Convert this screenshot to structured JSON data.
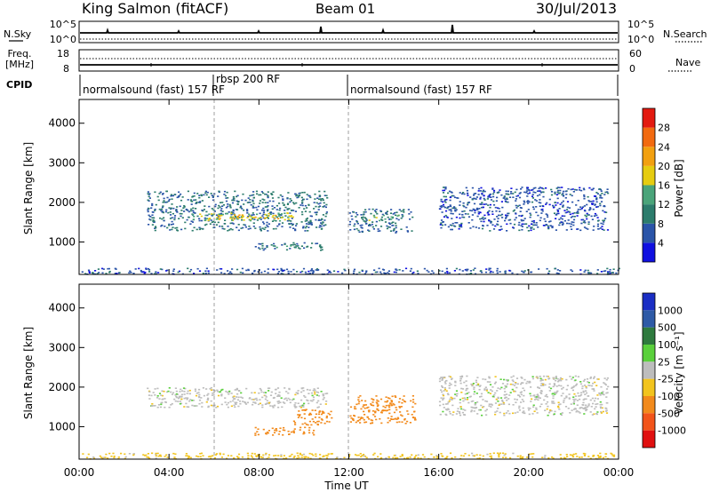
{
  "header": {
    "station": "King Salmon (fitACF)",
    "beam": "Beam 01",
    "date": "30/Jul/2013"
  },
  "strips": {
    "nsky_label": "N.Sky",
    "nsearch_label": "N.Search",
    "nsky_ticks": [
      "10^5",
      "10^0"
    ],
    "freq_label_1": "Freq.",
    "freq_label_2": "[MHz]",
    "freq_ticks": [
      "18",
      "8"
    ],
    "nave_label": "Nave",
    "nave_ticks": [
      "60",
      "0"
    ],
    "cpid_label": "CPID",
    "cpid_segments": [
      {
        "label": "normalsound (fast) 157 RF",
        "start_hour": 0,
        "end_hour": 6
      },
      {
        "label": "rbsp 200 RF",
        "start_hour": 6,
        "end_hour": 12
      },
      {
        "label": "normalsound (fast) 157 RF",
        "start_hour": 12,
        "end_hour": 24
      }
    ]
  },
  "axes": {
    "x_ticks": [
      "00:00",
      "04:00",
      "08:00",
      "12:00",
      "16:00",
      "20:00",
      "00:00"
    ],
    "x_label": "Time UT",
    "y_label": "Slant Range [km]",
    "y_ticks": [
      "1000",
      "2000",
      "3000",
      "4000"
    ]
  },
  "power_colorbar": {
    "title": "Power [dB]",
    "ticks": [
      "4",
      "8",
      "12",
      "16",
      "20",
      "24",
      "28"
    ],
    "colors": [
      "#1010e0",
      "#2a54a8",
      "#2c7c6c",
      "#4aa47a",
      "#e6cc10",
      "#f2a010",
      "#f26a10",
      "#e31a10"
    ]
  },
  "velocity_colorbar": {
    "title": "Velocity [m s⁻¹]",
    "ticks": [
      "1000",
      "500",
      "100",
      "25",
      "-25",
      "-100",
      "-500",
      "-1000"
    ],
    "colors": [
      "#1a2ec4",
      "#2e5aa6",
      "#2e7a3e",
      "#5ad03c",
      "#bdbdbd",
      "#f2c41e",
      "#f28a1c",
      "#f2541a",
      "#e01010"
    ]
  },
  "chart_data": [
    {
      "type": "heatmap",
      "title": "",
      "xlabel": "Time UT",
      "ylabel": "Slant Range [km]",
      "xlim": [
        0,
        24
      ],
      "ylim": [
        180,
        4600
      ],
      "colorbar": "Power [dB]",
      "scatter_regions": [
        {
          "t_start": 3.0,
          "t_end": 11.0,
          "range_start": 1300,
          "range_end": 2300,
          "level": 8
        },
        {
          "t_start": 5.0,
          "t_end": 9.5,
          "range_start": 1550,
          "range_end": 1750,
          "level": 16
        },
        {
          "t_start": 6.0,
          "t_end": 9.0,
          "range_start": 1600,
          "range_end": 1700,
          "level": 20
        },
        {
          "t_start": 7.8,
          "t_end": 10.8,
          "range_start": 800,
          "range_end": 1000,
          "level": 8
        },
        {
          "t_start": 8.5,
          "t_end": 9.8,
          "range_start": 850,
          "range_end": 950,
          "level": 14
        },
        {
          "t_start": 12.0,
          "t_end": 14.8,
          "range_start": 1250,
          "range_end": 1850,
          "level": 8
        },
        {
          "t_start": 12.8,
          "t_end": 14.4,
          "range_start": 1550,
          "range_end": 1700,
          "level": 14
        },
        {
          "t_start": 16.0,
          "t_end": 23.5,
          "range_start": 1300,
          "range_end": 2400,
          "level": 6
        },
        {
          "t_start": 0.0,
          "t_end": 24.0,
          "range_start": 200,
          "range_end": 350,
          "level": 6
        }
      ]
    },
    {
      "type": "heatmap",
      "title": "",
      "xlabel": "Time UT",
      "ylabel": "Slant Range [km]",
      "xlim": [
        0,
        24
      ],
      "ylim": [
        180,
        4600
      ],
      "colorbar": "Velocity [m s⁻¹]",
      "scatter_regions": [
        {
          "t_start": 3.0,
          "t_end": 11.0,
          "range_start": 1500,
          "range_end": 2000,
          "velocity": 0
        },
        {
          "t_start": 7.8,
          "t_end": 10.5,
          "range_start": 800,
          "range_end": 1000,
          "velocity": -250
        },
        {
          "t_start": 9.5,
          "t_end": 11.2,
          "range_start": 1050,
          "range_end": 1450,
          "velocity": -150
        },
        {
          "t_start": 12.0,
          "t_end": 15.0,
          "range_start": 1100,
          "range_end": 1800,
          "velocity": -200
        },
        {
          "t_start": 16.0,
          "t_end": 23.5,
          "range_start": 1300,
          "range_end": 2300,
          "velocity": 0
        },
        {
          "t_start": 0.0,
          "t_end": 24.0,
          "range_start": 200,
          "range_end": 350,
          "velocity": -50
        }
      ]
    }
  ]
}
